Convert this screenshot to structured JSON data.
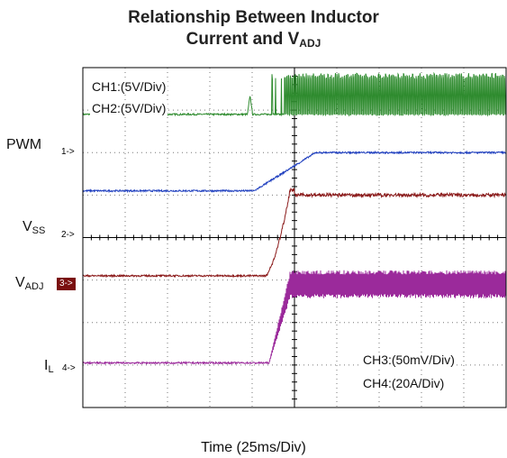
{
  "chart_data": {
    "type": "line",
    "title_line1": "Relationship Between Inductor",
    "title_line2_prefix": "Current and V",
    "title_line2_sub": "ADJ",
    "xlabel": "Time  (25ms/Div)",
    "grid": true,
    "divisions": {
      "x": 10,
      "y": 8
    },
    "scale_labels": {
      "ch1": "CH1:(5V/Div)",
      "ch2": "CH2:(5V/Div)",
      "ch3": "CH3:(50mV/Div)",
      "ch4": "CH4:(20A/Div)"
    },
    "series": [
      {
        "name": "PWM",
        "marker": "1->",
        "color": "#2e8b2e",
        "baseline_div": 6.9,
        "trace": "pwm",
        "pulse_start_div": 8.85,
        "pulse_height_div": 1.05,
        "glitch_div": 7.9
      },
      {
        "name": "V",
        "name_sub": "SS",
        "marker": "2->",
        "color": "#1f3fbf",
        "baseline_div": 5.1,
        "trace": "ramp",
        "ramp_start_div": 8.1,
        "ramp_end_div": 11.0,
        "final_div": 6.0
      },
      {
        "name": "V",
        "name_sub": "ADJ",
        "marker": "3->",
        "color": "#8b1a1a",
        "baseline_div": 3.1,
        "trace": "step",
        "rise_start_div": 8.6,
        "rise_end_div": 9.75,
        "final_div": 5.0
      },
      {
        "name": "I",
        "name_sub": "L",
        "marker": "4->",
        "color": "#9b2a9b",
        "baseline_div": 1.05,
        "trace": "ripple",
        "rise_start_div": 8.8,
        "rise_end_div": 9.8,
        "final_div": 2.9,
        "ripple_amp_div": 0.33
      }
    ],
    "time_axis": {
      "start_div": 0,
      "end_div": 20
    }
  }
}
